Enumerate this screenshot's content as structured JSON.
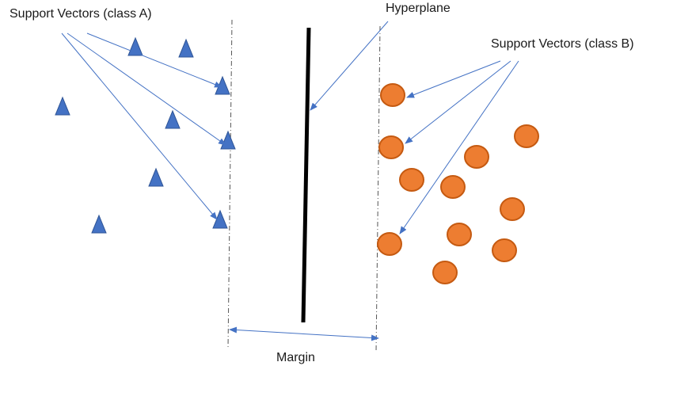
{
  "labels": {
    "support_a": "Support Vectors (class A)",
    "hyperplane": "Hyperplane",
    "support_b": "Support Vectors (class B)",
    "margin": "Margin"
  },
  "colors": {
    "class_a_fill": "#4472c4",
    "class_a_stroke": "#2f5597",
    "class_b_fill": "#ed7d31",
    "class_b_stroke": "#c55a11",
    "arrow": "#4472c4",
    "hyperplane": "#000000",
    "boundary": "#555555"
  },
  "legend": {
    "class_a_shape": "triangle",
    "class_b_shape": "circle"
  }
}
